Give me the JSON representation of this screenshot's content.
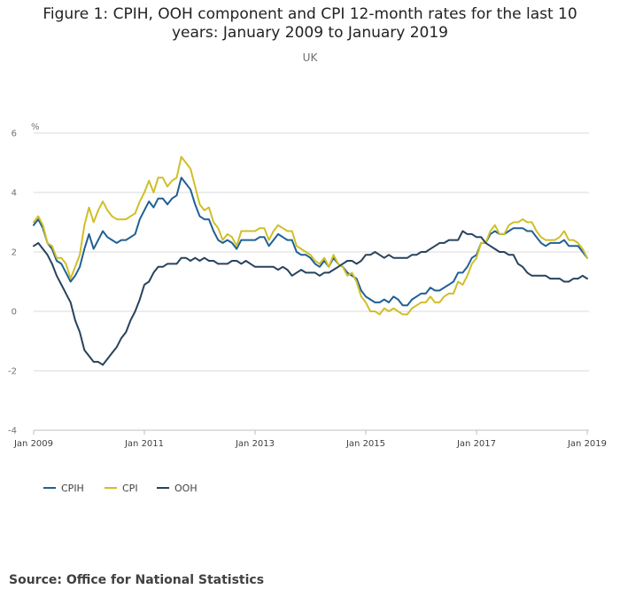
{
  "chart_data": {
    "type": "line",
    "title": "Figure 1: CPIH, OOH component and CPI 12-month rates for the last 10 years: January 2009 to January 2019",
    "subtitle": "UK",
    "ylabel": "%",
    "ylim": [
      -4,
      6
    ],
    "yticks": [
      "-4",
      "-2",
      "0",
      "2",
      "4",
      "6"
    ],
    "xlim": [
      "2009-01",
      "2019-01"
    ],
    "xticks": [
      {
        "date": "2009-01",
        "label": "Jan 2009"
      },
      {
        "date": "2011-01",
        "label": "Jan 2011"
      },
      {
        "date": "2013-01",
        "label": "Jan 2013"
      },
      {
        "date": "2015-01",
        "label": "Jan 2015"
      },
      {
        "date": "2017-01",
        "label": "Jan 2017"
      },
      {
        "date": "2019-01",
        "label": "Jan 2019"
      }
    ],
    "grid": true,
    "legend_position": "bottom-left",
    "start": "2009-01",
    "frequency": "monthly",
    "series": [
      {
        "name": "CPIH",
        "color": "#206095",
        "values": [
          2.9,
          3.1,
          2.8,
          2.3,
          2.1,
          1.7,
          1.6,
          1.3,
          1.0,
          1.2,
          1.5,
          2.1,
          2.6,
          2.1,
          2.4,
          2.7,
          2.5,
          2.4,
          2.3,
          2.4,
          2.4,
          2.5,
          2.6,
          3.1,
          3.4,
          3.7,
          3.5,
          3.8,
          3.8,
          3.6,
          3.8,
          3.9,
          4.5,
          4.3,
          4.1,
          3.6,
          3.2,
          3.1,
          3.1,
          2.7,
          2.4,
          2.3,
          2.4,
          2.3,
          2.1,
          2.4,
          2.4,
          2.4,
          2.4,
          2.5,
          2.5,
          2.2,
          2.4,
          2.6,
          2.5,
          2.4,
          2.4,
          2.0,
          1.9,
          1.9,
          1.8,
          1.6,
          1.5,
          1.7,
          1.5,
          1.8,
          1.6,
          1.5,
          1.3,
          1.2,
          1.1,
          0.7,
          0.5,
          0.4,
          0.3,
          0.3,
          0.4,
          0.3,
          0.5,
          0.4,
          0.2,
          0.2,
          0.4,
          0.5,
          0.6,
          0.6,
          0.8,
          0.7,
          0.7,
          0.8,
          0.9,
          1.0,
          1.3,
          1.3,
          1.5,
          1.8,
          1.9,
          2.3,
          2.3,
          2.6,
          2.7,
          2.6,
          2.6,
          2.7,
          2.8,
          2.8,
          2.8,
          2.7,
          2.7,
          2.5,
          2.3,
          2.2,
          2.3,
          2.3,
          2.3,
          2.4,
          2.2,
          2.2,
          2.2,
          2.0,
          1.8
        ]
      },
      {
        "name": "CPI",
        "color": "#D0BF28",
        "values": [
          3.0,
          3.2,
          2.9,
          2.3,
          2.2,
          1.8,
          1.8,
          1.6,
          1.1,
          1.5,
          1.9,
          2.9,
          3.5,
          3.0,
          3.4,
          3.7,
          3.4,
          3.2,
          3.1,
          3.1,
          3.1,
          3.2,
          3.3,
          3.7,
          4.0,
          4.4,
          4.0,
          4.5,
          4.5,
          4.2,
          4.4,
          4.5,
          5.2,
          5.0,
          4.8,
          4.2,
          3.6,
          3.4,
          3.5,
          3.0,
          2.8,
          2.4,
          2.6,
          2.5,
          2.2,
          2.7,
          2.7,
          2.7,
          2.7,
          2.8,
          2.8,
          2.4,
          2.7,
          2.9,
          2.8,
          2.7,
          2.7,
          2.2,
          2.1,
          2.0,
          1.9,
          1.7,
          1.6,
          1.8,
          1.5,
          1.9,
          1.6,
          1.5,
          1.2,
          1.3,
          1.0,
          0.5,
          0.3,
          0.0,
          0.0,
          -0.1,
          0.1,
          0.0,
          0.1,
          0.0,
          -0.1,
          -0.1,
          0.1,
          0.2,
          0.3,
          0.3,
          0.5,
          0.3,
          0.3,
          0.5,
          0.6,
          0.6,
          1.0,
          0.9,
          1.2,
          1.6,
          1.8,
          2.3,
          2.3,
          2.7,
          2.9,
          2.6,
          2.6,
          2.9,
          3.0,
          3.0,
          3.1,
          3.0,
          3.0,
          2.7,
          2.5,
          2.4,
          2.4,
          2.4,
          2.5,
          2.7,
          2.4,
          2.4,
          2.3,
          2.1,
          1.8
        ]
      },
      {
        "name": "OOH",
        "color": "#27435D",
        "values": [
          2.2,
          2.3,
          2.1,
          1.9,
          1.6,
          1.2,
          0.9,
          0.6,
          0.3,
          -0.3,
          -0.7,
          -1.3,
          -1.5,
          -1.7,
          -1.7,
          -1.8,
          -1.6,
          -1.4,
          -1.2,
          -0.9,
          -0.7,
          -0.3,
          0.0,
          0.4,
          0.9,
          1.0,
          1.3,
          1.5,
          1.5,
          1.6,
          1.6,
          1.6,
          1.8,
          1.8,
          1.7,
          1.8,
          1.7,
          1.8,
          1.7,
          1.7,
          1.6,
          1.6,
          1.6,
          1.7,
          1.7,
          1.6,
          1.7,
          1.6,
          1.5,
          1.5,
          1.5,
          1.5,
          1.5,
          1.4,
          1.5,
          1.4,
          1.2,
          1.3,
          1.4,
          1.3,
          1.3,
          1.3,
          1.2,
          1.3,
          1.3,
          1.4,
          1.5,
          1.6,
          1.7,
          1.7,
          1.6,
          1.7,
          1.9,
          1.9,
          2.0,
          1.9,
          1.8,
          1.9,
          1.8,
          1.8,
          1.8,
          1.8,
          1.9,
          1.9,
          2.0,
          2.0,
          2.1,
          2.2,
          2.3,
          2.3,
          2.4,
          2.4,
          2.4,
          2.7,
          2.6,
          2.6,
          2.5,
          2.5,
          2.3,
          2.2,
          2.1,
          2.0,
          2.0,
          1.9,
          1.9,
          1.6,
          1.5,
          1.3,
          1.2,
          1.2,
          1.2,
          1.2,
          1.1,
          1.1,
          1.1,
          1.0,
          1.0,
          1.1,
          1.1,
          1.2,
          1.1
        ]
      }
    ]
  },
  "source": {
    "prefix": "Source: ",
    "text": "Office for National Statistics"
  }
}
